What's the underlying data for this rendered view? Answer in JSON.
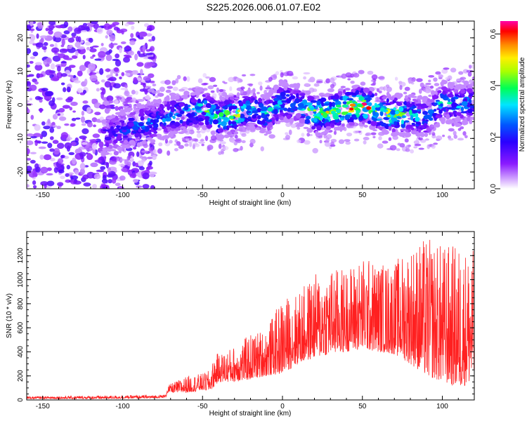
{
  "title": "S225.2026.006.01.07.E02",
  "chart_data": [
    {
      "type": "heatmap",
      "xlabel": "Height of straight line (km)",
      "ylabel": "Frequency (Hz)",
      "xlim": [
        -160,
        120
      ],
      "ylim": [
        -25,
        25
      ],
      "xticks": [
        -150,
        -100,
        -50,
        0,
        50,
        100
      ],
      "yticks": [
        -20,
        -10,
        0,
        10,
        20
      ],
      "colorbar": {
        "label": "Normalized spectral amplitude",
        "range": [
          0,
          0.65
        ],
        "ticks": [
          "0.0",
          "0.2",
          "0.4",
          "0.6"
        ],
        "colormap": [
          "#ffffff",
          "#cc99ff",
          "#7a00ff",
          "#2200ff",
          "#0066ff",
          "#00e5ff",
          "#00ff44",
          "#aaff00",
          "#ffee00",
          "#ff8800",
          "#ff0000",
          "#ff00aa"
        ]
      },
      "ridge": {
        "description_points_x": [
          -110,
          -90,
          -75,
          -60,
          -50,
          -40,
          -30,
          -20,
          -10,
          0,
          10,
          20,
          30,
          40,
          50,
          60,
          70,
          80,
          90,
          100,
          110,
          120
        ],
        "center_frequency": [
          -9,
          -6,
          -4,
          -2,
          -1,
          -4,
          -3,
          -1,
          -3,
          1,
          0,
          -3,
          -2,
          -1,
          0,
          -2,
          -3,
          -3,
          -4,
          1,
          0,
          1
        ],
        "peak_amplitude": [
          0.2,
          0.3,
          0.3,
          0.35,
          0.4,
          0.45,
          0.55,
          0.35,
          0.4,
          0.35,
          0.3,
          0.55,
          0.5,
          0.6,
          0.65,
          0.45,
          0.55,
          0.4,
          0.3,
          0.35,
          0.35,
          0.3
        ]
      },
      "noise_region_x": [
        -160,
        -80
      ]
    },
    {
      "type": "line",
      "xlabel": "Height of straight line (km)",
      "ylabel": "SNR (10 * v/v)",
      "xlim": [
        -160,
        120
      ],
      "ylim": [
        0,
        1400
      ],
      "xticks": [
        -150,
        -100,
        -50,
        0,
        50,
        100
      ],
      "yticks": [
        0,
        200,
        400,
        600,
        800,
        1000,
        1200
      ],
      "series": [
        {
          "color": "#ff2020",
          "envelope_x": [
            -160,
            -120,
            -80,
            -73,
            -72,
            -60,
            -50,
            -45,
            -42,
            -40,
            -30,
            -20,
            -10,
            0,
            10,
            20,
            30,
            40,
            50,
            60,
            70,
            80,
            90,
            100,
            110,
            120
          ],
          "envelope_low": [
            10,
            10,
            15,
            20,
            60,
            60,
            80,
            80,
            120,
            150,
            150,
            170,
            200,
            220,
            300,
            350,
            380,
            400,
            420,
            400,
            380,
            300,
            200,
            150,
            100,
            150
          ],
          "envelope_high": [
            30,
            35,
            40,
            45,
            120,
            200,
            220,
            250,
            400,
            380,
            450,
            550,
            600,
            850,
            900,
            1050,
            1100,
            1100,
            1200,
            1150,
            1150,
            1300,
            1350,
            1300,
            1300,
            1250
          ]
        }
      ]
    }
  ]
}
